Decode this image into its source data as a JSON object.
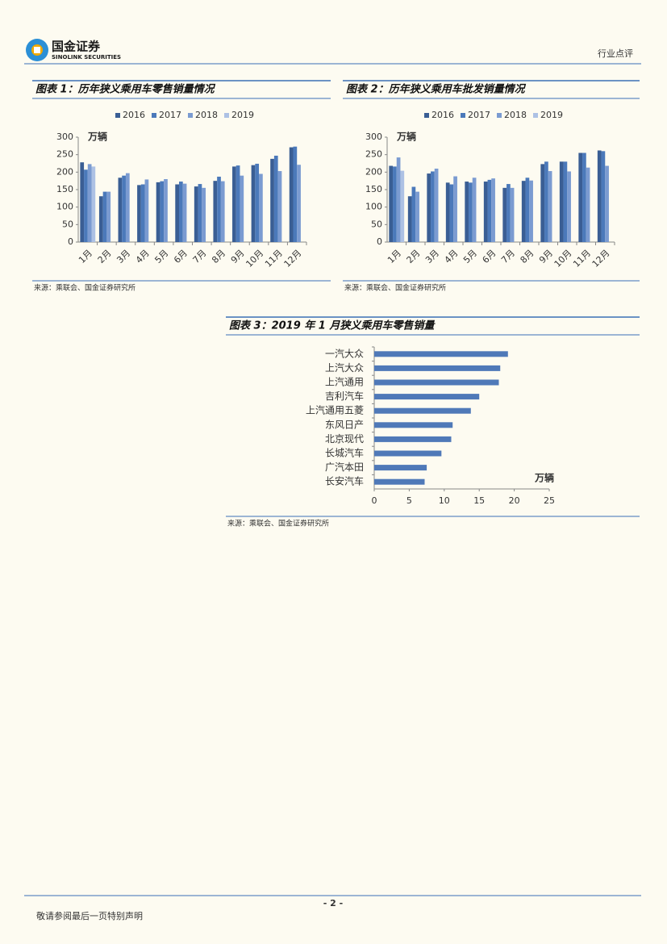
{
  "header": {
    "logo_cn": "国金证券",
    "logo_en": "SINOLINK SECURITIES",
    "section": "行业点评"
  },
  "chart_data": [
    {
      "type": "bar",
      "title": "图表 1：历年狭义乘用车零售销量情况",
      "y_label": "万辆",
      "categories": [
        "1月",
        "2月",
        "3月",
        "4月",
        "5月",
        "6月",
        "7月",
        "8月",
        "9月",
        "10月",
        "11月",
        "12月"
      ],
      "series": [
        {
          "name": "2016",
          "color": "#3a5e94",
          "values": [
            228,
            131,
            184,
            163,
            171,
            165,
            159,
            175,
            216,
            220,
            238,
            271
          ]
        },
        {
          "name": "2017",
          "color": "#4b79ba",
          "values": [
            207,
            144,
            190,
            165,
            174,
            173,
            166,
            187,
            219,
            224,
            247,
            273
          ]
        },
        {
          "name": "2018",
          "color": "#7b9bd1",
          "values": [
            223,
            144,
            197,
            179,
            180,
            167,
            155,
            174,
            190,
            195,
            203,
            221
          ]
        },
        {
          "name": "2019",
          "color": "#adc1e4",
          "values": [
            216,
            null,
            null,
            null,
            null,
            null,
            null,
            null,
            null,
            null,
            null,
            null
          ]
        }
      ],
      "ylim": [
        0,
        300
      ],
      "yticks": [
        0,
        50,
        100,
        150,
        200,
        250,
        300
      ],
      "source": "来源：乘联会、国金证券研究所"
    },
    {
      "type": "bar",
      "title": "图表 2：历年狭义乘用车批发销量情况",
      "y_label": "万辆",
      "categories": [
        "1月",
        "2月",
        "3月",
        "4月",
        "5月",
        "6月",
        "7月",
        "8月",
        "9月",
        "10月",
        "11月",
        "12月"
      ],
      "series": [
        {
          "name": "2016",
          "color": "#3a5e94",
          "values": [
            218,
            131,
            196,
            170,
            173,
            173,
            155,
            175,
            223,
            230,
            255,
            262
          ]
        },
        {
          "name": "2017",
          "color": "#4b79ba",
          "values": [
            216,
            158,
            202,
            165,
            170,
            178,
            166,
            184,
            230,
            230,
            255,
            260
          ]
        },
        {
          "name": "2018",
          "color": "#7b9bd1",
          "values": [
            242,
            144,
            210,
            188,
            184,
            182,
            155,
            176,
            203,
            202,
            213,
            218
          ]
        },
        {
          "name": "2019",
          "color": "#adc1e4",
          "values": [
            204,
            null,
            null,
            null,
            null,
            null,
            null,
            null,
            null,
            null,
            null,
            null
          ]
        }
      ],
      "ylim": [
        0,
        300
      ],
      "yticks": [
        0,
        50,
        100,
        150,
        200,
        250,
        300
      ],
      "source": "来源：乘联会、国金证券研究所"
    },
    {
      "type": "barh",
      "title": "图表 3：2019 年 1 月狭义乘用车零售销量",
      "x_label": "万辆",
      "categories": [
        "一汽大众",
        "上汽大众",
        "上汽通用",
        "吉利汽车",
        "上汽通用五菱",
        "东风日产",
        "北京现代",
        "长城汽车",
        "广汽本田",
        "长安汽车"
      ],
      "values": [
        19.1,
        18.0,
        17.8,
        15.0,
        13.8,
        11.2,
        11.0,
        9.6,
        7.5,
        7.2
      ],
      "color": "#4f79b8",
      "xlim": [
        0,
        25
      ],
      "xticks": [
        0,
        5,
        10,
        15,
        20,
        25
      ],
      "source": "来源：乘联会、国金证券研究所"
    }
  ],
  "footer": {
    "page": "- 2 -",
    "disclaimer": "敬请参阅最后一页特别声明"
  }
}
